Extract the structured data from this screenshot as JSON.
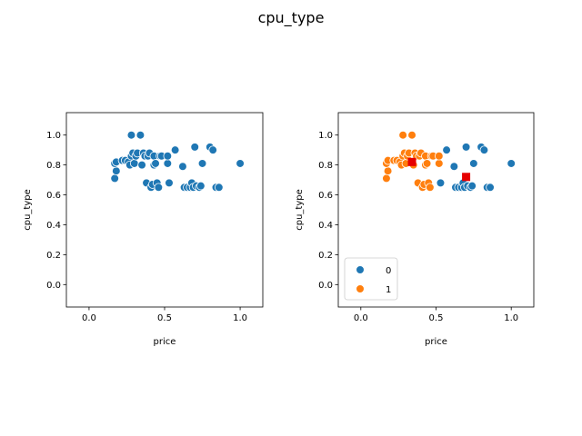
{
  "figure": {
    "suptitle": "cpu_type"
  },
  "colors": {
    "class0": "#1f77b4",
    "class1": "#ff7f0e",
    "centroid": "#e60000",
    "frame": "#000000"
  },
  "chart_data": [
    {
      "type": "scatter",
      "title": "",
      "xlabel": "price",
      "ylabel": "cpu_type",
      "xlim": [
        -0.15,
        1.15
      ],
      "ylim": [
        -0.15,
        1.15
      ],
      "xticks": [
        0.0,
        0.5,
        1.0
      ],
      "xtick_labels": [
        "0.0",
        "0.5",
        "1.0"
      ],
      "yticks": [
        0.0,
        0.2,
        0.4,
        0.6,
        0.8,
        1.0
      ],
      "ytick_labels": [
        "0.0",
        "0.2",
        "0.4",
        "0.6",
        "0.8",
        "1.0"
      ],
      "grid": false,
      "legend": null,
      "series": [
        {
          "color": "#1f77b4",
          "points": [
            [
              0.17,
              0.71
            ],
            [
              0.18,
              0.76
            ],
            [
              0.17,
              0.81
            ],
            [
              0.18,
              0.82
            ],
            [
              0.22,
              0.83
            ],
            [
              0.24,
              0.83
            ],
            [
              0.26,
              0.82
            ],
            [
              0.27,
              0.8
            ],
            [
              0.28,
              0.86
            ],
            [
              0.29,
              0.88
            ],
            [
              0.3,
              0.81
            ],
            [
              0.31,
              0.86
            ],
            [
              0.32,
              0.88
            ],
            [
              0.28,
              1.0
            ],
            [
              0.34,
              1.0
            ],
            [
              0.35,
              0.8
            ],
            [
              0.36,
              0.88
            ],
            [
              0.37,
              0.86
            ],
            [
              0.38,
              0.68
            ],
            [
              0.39,
              0.86
            ],
            [
              0.4,
              0.88
            ],
            [
              0.41,
              0.65
            ],
            [
              0.42,
              0.67
            ],
            [
              0.43,
              0.8
            ],
            [
              0.43,
              0.86
            ],
            [
              0.44,
              0.81
            ],
            [
              0.45,
              0.68
            ],
            [
              0.46,
              0.65
            ],
            [
              0.47,
              0.86
            ],
            [
              0.48,
              0.86
            ],
            [
              0.52,
              0.81
            ],
            [
              0.52,
              0.86
            ],
            [
              0.53,
              0.68
            ],
            [
              0.57,
              0.9
            ],
            [
              0.62,
              0.79
            ],
            [
              0.63,
              0.65
            ],
            [
              0.65,
              0.65
            ],
            [
              0.67,
              0.65
            ],
            [
              0.68,
              0.68
            ],
            [
              0.69,
              0.65
            ],
            [
              0.7,
              0.92
            ],
            [
              0.71,
              0.66
            ],
            [
              0.73,
              0.65
            ],
            [
              0.74,
              0.66
            ],
            [
              0.75,
              0.81
            ],
            [
              0.8,
              0.92
            ],
            [
              0.82,
              0.9
            ],
            [
              0.84,
              0.65
            ],
            [
              0.86,
              0.65
            ],
            [
              1.0,
              0.81
            ]
          ]
        }
      ]
    },
    {
      "type": "scatter",
      "title": "",
      "xlabel": "price",
      "ylabel": "cpu_type",
      "xlim": [
        -0.15,
        1.15
      ],
      "ylim": [
        -0.15,
        1.15
      ],
      "xticks": [
        0.0,
        0.5,
        1.0
      ],
      "xtick_labels": [
        "0.0",
        "0.5",
        "1.0"
      ],
      "yticks": [
        0.0,
        0.2,
        0.4,
        0.6,
        0.8,
        1.0
      ],
      "ytick_labels": [
        "0.0",
        "0.2",
        "0.4",
        "0.6",
        "0.8",
        "1.0"
      ],
      "grid": false,
      "legend": {
        "position": "lower-left",
        "entries": [
          {
            "label": "0",
            "color": "#1f77b4"
          },
          {
            "label": "1",
            "color": "#ff7f0e"
          }
        ]
      },
      "series": [
        {
          "name": "0",
          "color": "#1f77b4",
          "points": [
            [
              0.53,
              0.68
            ],
            [
              0.57,
              0.9
            ],
            [
              0.62,
              0.79
            ],
            [
              0.63,
              0.65
            ],
            [
              0.65,
              0.65
            ],
            [
              0.67,
              0.65
            ],
            [
              0.68,
              0.68
            ],
            [
              0.69,
              0.65
            ],
            [
              0.7,
              0.92
            ],
            [
              0.71,
              0.66
            ],
            [
              0.73,
              0.65
            ],
            [
              0.74,
              0.66
            ],
            [
              0.75,
              0.81
            ],
            [
              0.8,
              0.92
            ],
            [
              0.82,
              0.9
            ],
            [
              0.84,
              0.65
            ],
            [
              0.86,
              0.65
            ],
            [
              1.0,
              0.81
            ]
          ]
        },
        {
          "name": "1",
          "color": "#ff7f0e",
          "points": [
            [
              0.17,
              0.71
            ],
            [
              0.18,
              0.76
            ],
            [
              0.17,
              0.81
            ],
            [
              0.18,
              0.83
            ],
            [
              0.22,
              0.83
            ],
            [
              0.24,
              0.83
            ],
            [
              0.26,
              0.82
            ],
            [
              0.27,
              0.8
            ],
            [
              0.28,
              0.86
            ],
            [
              0.29,
              0.88
            ],
            [
              0.3,
              0.81
            ],
            [
              0.31,
              0.86
            ],
            [
              0.32,
              0.88
            ],
            [
              0.28,
              1.0
            ],
            [
              0.34,
              1.0
            ],
            [
              0.35,
              0.8
            ],
            [
              0.36,
              0.88
            ],
            [
              0.37,
              0.86
            ],
            [
              0.38,
              0.68
            ],
            [
              0.39,
              0.86
            ],
            [
              0.4,
              0.88
            ],
            [
              0.41,
              0.65
            ],
            [
              0.42,
              0.67
            ],
            [
              0.43,
              0.8
            ],
            [
              0.43,
              0.86
            ],
            [
              0.44,
              0.81
            ],
            [
              0.45,
              0.68
            ],
            [
              0.46,
              0.65
            ],
            [
              0.47,
              0.86
            ],
            [
              0.48,
              0.86
            ],
            [
              0.52,
              0.81
            ],
            [
              0.52,
              0.86
            ]
          ]
        }
      ],
      "centroids": [
        {
          "x": 0.34,
          "y": 0.82,
          "color": "#e60000"
        },
        {
          "x": 0.7,
          "y": 0.72,
          "color": "#e60000"
        }
      ]
    }
  ]
}
